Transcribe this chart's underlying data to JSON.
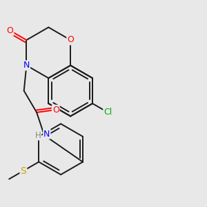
{
  "background_color": "#e8e8e8",
  "bond_color": "#1a1a1a",
  "atom_colors": {
    "O": "#ff0000",
    "N": "#0000ff",
    "Cl": "#00aa00",
    "S": "#ccaa00",
    "C": "#1a1a1a",
    "H": "#888888"
  },
  "bond_width": 1.4,
  "figsize": [
    3.0,
    3.0
  ],
  "dpi": 100,
  "xlim": [
    0,
    10
  ],
  "ylim": [
    -1,
    11
  ]
}
